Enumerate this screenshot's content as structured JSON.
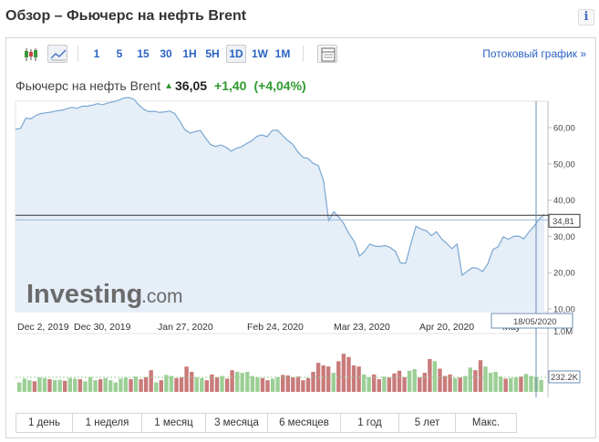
{
  "header": {
    "title": "Обзор – Фьючерс на нефть Brent",
    "info_glyph": "i"
  },
  "toolbar": {
    "timeframes": [
      "1",
      "5",
      "15",
      "30",
      "1H",
      "5H",
      "1D",
      "1W",
      "1M"
    ],
    "active_timeframe": "1D",
    "streaming_label": "Потоковый график »"
  },
  "quote": {
    "name": "Фьючерс на нефть Brent",
    "price": "36,05",
    "change": "+1,40",
    "change_pct": "(+4,04%)"
  },
  "logo": {
    "main": "Investing",
    "suffix": ".com"
  },
  "chart_data": {
    "type": "area",
    "price_axis_ticks": [
      "60,00",
      "50,00",
      "40,00",
      "30,00",
      "20,00",
      "10,00"
    ],
    "price_ylim": [
      10,
      60
    ],
    "x_tick_labels": [
      "Dec 2, 2019",
      "Dec 30, 2019",
      "Jan 27, 2020",
      "Feb 24, 2020",
      "Mar 23, 2020",
      "Apr 20, 2020",
      "May"
    ],
    "current_price_label": "34,81",
    "crosshair_date_label": "18/05/2020",
    "volume_axis_ticks": [
      "1.0M"
    ],
    "volume_current_label": "232.2K",
    "price_series": [
      59.5,
      59.8,
      62.6,
      62.4,
      63.4,
      63.9,
      64.1,
      64.3,
      64.6,
      64.8,
      65.2,
      65.6,
      65.3,
      65.9,
      65.9,
      66.2,
      66.6,
      66.3,
      66.8,
      67.1,
      67.5,
      68.1,
      68.3,
      67.9,
      66.3,
      65.0,
      64.4,
      64.5,
      64.2,
      64.3,
      64.6,
      63.9,
      61.8,
      59.4,
      58.5,
      58.9,
      59.2,
      57.2,
      55.3,
      54.8,
      55.2,
      54.6,
      53.5,
      54.3,
      54.7,
      55.6,
      56.3,
      57.6,
      58.0,
      57.5,
      59.2,
      59.3,
      57.9,
      56.5,
      55.4,
      53.3,
      51.8,
      51.5,
      50.1,
      49.5,
      45.3,
      34.4,
      36.8,
      35.3,
      33.4,
      30.6,
      28.6,
      24.6,
      25.9,
      27.9,
      27.3,
      27.2,
      27.5,
      26.9,
      25.9,
      22.7,
      22.6,
      27.9,
      32.8,
      32.0,
      31.6,
      30.2,
      31.3,
      29.3,
      28.1,
      26.6,
      27.9,
      19.3,
      20.4,
      21.4,
      21.2,
      20.3,
      22.5,
      26.4,
      27.1,
      29.9,
      29.2,
      30.0,
      30.1,
      29.3,
      31.2,
      32.8,
      34.8,
      36.1
    ],
    "volume_values": [
      0.18,
      0.25,
      0.22,
      0.2,
      0.27,
      0.26,
      0.24,
      0.22,
      0.23,
      0.21,
      0.26,
      0.25,
      0.24,
      0.2,
      0.28,
      0.22,
      0.24,
      0.26,
      0.22,
      0.18,
      0.25,
      0.27,
      0.24,
      0.29,
      0.24,
      0.28,
      0.41,
      0.18,
      0.22,
      0.32,
      0.3,
      0.26,
      0.28,
      0.48,
      0.38,
      0.27,
      0.26,
      0.22,
      0.33,
      0.28,
      0.3,
      0.25,
      0.41,
      0.38,
      0.36,
      0.38,
      0.3,
      0.27,
      0.26,
      0.22,
      0.25,
      0.28,
      0.32,
      0.31,
      0.28,
      0.29,
      0.22,
      0.26,
      0.38,
      0.55,
      0.5,
      0.48,
      0.36,
      0.58,
      0.72,
      0.66,
      0.5,
      0.48,
      0.33,
      0.28,
      0.33,
      0.24,
      0.29,
      0.27,
      0.35,
      0.4,
      0.28,
      0.4,
      0.43,
      0.27,
      0.36,
      0.62,
      0.58,
      0.44,
      0.3,
      0.33,
      0.26,
      0.27,
      0.3,
      0.46,
      0.41,
      0.6,
      0.48,
      0.36,
      0.38,
      0.29,
      0.25,
      0.26,
      0.27,
      0.29,
      0.34,
      0.3,
      0.28,
      0.23
    ],
    "volume_up": [
      1,
      1,
      1,
      0,
      1,
      1,
      0,
      1,
      1,
      0,
      1,
      1,
      0,
      1,
      1,
      1,
      0,
      1,
      1,
      1,
      1,
      1,
      0,
      1,
      0,
      0,
      0,
      1,
      0,
      1,
      1,
      0,
      0,
      0,
      0,
      1,
      1,
      0,
      0,
      0,
      1,
      0,
      0,
      1,
      1,
      1,
      1,
      1,
      0,
      0,
      1,
      1,
      0,
      0,
      0,
      0,
      0,
      0,
      0,
      0,
      0,
      0,
      1,
      0,
      0,
      0,
      0,
      0,
      1,
      1,
      0,
      0,
      1,
      0,
      0,
      0,
      0,
      1,
      1,
      0,
      0,
      0,
      1,
      0,
      0,
      0,
      1,
      0,
      1,
      1,
      0,
      0,
      1,
      1,
      1,
      1,
      0,
      1,
      1,
      0,
      1,
      1,
      1,
      1
    ]
  },
  "ranges": [
    "1 день",
    "1 неделя",
    "1 месяц",
    "3 месяца",
    "6 месяцев",
    "1 год",
    "5 лет",
    "Макс."
  ],
  "colors": {
    "link": "#2a62c2",
    "price_line": "#7aa7d1",
    "area_fill": "#e6eef8",
    "volume_up": "#9ccf96",
    "volume_down": "#c97a7a",
    "positive": "#2e9a2e"
  }
}
